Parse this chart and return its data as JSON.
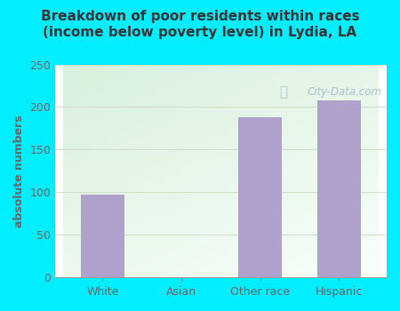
{
  "categories": [
    "White",
    "Asian",
    "Other race",
    "Hispanic"
  ],
  "values": [
    97,
    0,
    188,
    208
  ],
  "bar_color": "#b0a0cc",
  "title_line1": "Breakdown of poor residents within races",
  "title_line2": "(income below poverty level) in Lydia, LA",
  "ylabel": "absolute numbers",
  "ylim": [
    0,
    250
  ],
  "yticks": [
    0,
    50,
    100,
    150,
    200,
    250
  ],
  "background_outer": "#00eeff",
  "plot_bg_top_left": "#d8f0dc",
  "plot_bg_bottom_right": "#f8fffa",
  "grid_color": "#d0ddc8",
  "title_color": "#333333",
  "tick_label_color": "#666666",
  "ylabel_color": "#666666",
  "watermark_text": "City-Data.com",
  "watermark_color": "#a0bbc8"
}
